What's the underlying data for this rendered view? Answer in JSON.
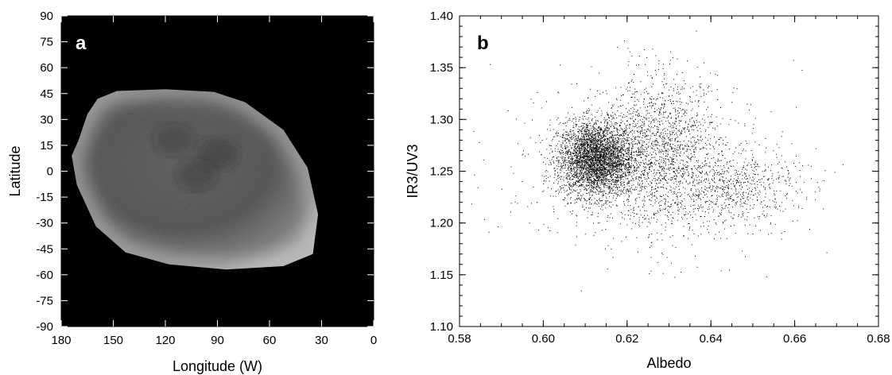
{
  "chart_data": [
    {
      "panel_label": "a",
      "type": "heatmap",
      "description": "Map-projected grayscale albedo image of a planetary disk on a black background",
      "xlabel": "Longitude (W)",
      "ylabel": "Latitude",
      "xlim": [
        180,
        0
      ],
      "ylim": [
        -90,
        90
      ],
      "x_ticks": [
        180,
        150,
        120,
        90,
        60,
        30,
        0
      ],
      "y_ticks": [
        90,
        75,
        60,
        45,
        30,
        15,
        0,
        -15,
        -30,
        -45,
        -60,
        -75,
        -90
      ],
      "background_color": "#000000",
      "coverage_outline_lonlat": [
        [
          165,
          33
        ],
        [
          159,
          42
        ],
        [
          148,
          46.5
        ],
        [
          120,
          47.5
        ],
        [
          92,
          46
        ],
        [
          74,
          40
        ],
        [
          52,
          24
        ],
        [
          38,
          2
        ],
        [
          32,
          -25
        ],
        [
          35,
          -48
        ],
        [
          52,
          -55
        ],
        [
          85,
          -57
        ],
        [
          118,
          -54
        ],
        [
          143,
          -47
        ],
        [
          160,
          -32
        ],
        [
          171,
          -8
        ],
        [
          174,
          9
        ],
        [
          170,
          18
        ]
      ],
      "dark_features_lonlat": [
        {
          "lon": 90,
          "lat": 10,
          "strength": 0.9
        },
        {
          "lon": 102,
          "lat": -2,
          "strength": 0.7
        },
        {
          "lon": 115,
          "lat": 18,
          "strength": 0.6
        }
      ]
    },
    {
      "panel_label": "b",
      "type": "scatter",
      "xlabel": "Albedo",
      "ylabel": "IR3/UV3",
      "xlim": [
        0.58,
        0.68
      ],
      "ylim": [
        1.1,
        1.4
      ],
      "x_ticks": [
        "0.58",
        "0.60",
        "0.62",
        "0.64",
        "0.66",
        "0.68"
      ],
      "y_ticks": [
        "1.10",
        "1.15",
        "1.20",
        "1.25",
        "1.30",
        "1.35",
        "1.40"
      ],
      "point_color": "#000000",
      "point_clusters": [
        {
          "center_x": 0.6125,
          "center_y": 1.262,
          "spread_x": 0.0045,
          "spread_y": 0.018,
          "n": 3800
        },
        {
          "center_x": 0.628,
          "center_y": 1.27,
          "spread_x": 0.007,
          "spread_y": 0.035,
          "n": 1600
        },
        {
          "center_x": 0.645,
          "center_y": 1.235,
          "spread_x": 0.008,
          "spread_y": 0.018,
          "n": 650
        },
        {
          "center_x": 0.625,
          "center_y": 1.25,
          "spread_x": 0.018,
          "spread_y": 0.045,
          "n": 450
        }
      ]
    }
  ]
}
